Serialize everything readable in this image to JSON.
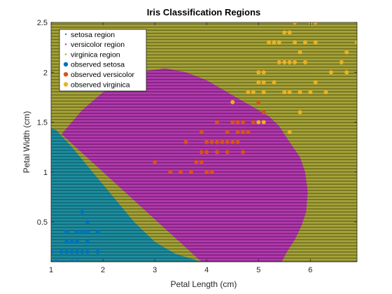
{
  "chart_data": {
    "type": "scatter",
    "title": "Iris  Classification  Regions",
    "xlabel": "Petal Length (cm)",
    "ylabel": "Petal Width (cm)",
    "xlim": [
      1,
      6.9
    ],
    "ylim": [
      0.1,
      2.5
    ],
    "xticks": [
      1,
      2,
      3,
      4,
      5,
      6
    ],
    "yticks": [
      0.5,
      1,
      1.5,
      2,
      2.5
    ],
    "xtick_labels": [
      "1",
      "2",
      "3",
      "4",
      "5",
      "6"
    ],
    "ytick_labels": [
      "0.5",
      "1",
      "1.5",
      "2",
      "2.5"
    ],
    "grid": false,
    "legend_position": "top-left",
    "regions": {
      "setosa_boundary": [
        [
          1.0,
          1.44
        ],
        [
          1.1,
          1.42
        ],
        [
          1.4,
          1.25
        ],
        [
          1.8,
          1.0
        ],
        [
          2.2,
          0.75
        ],
        [
          2.6,
          0.5
        ],
        [
          3.0,
          0.3
        ],
        [
          3.4,
          0.18
        ],
        [
          3.9,
          0.1
        ]
      ],
      "versicolor_boundary": [
        [
          1.2,
          1.38
        ],
        [
          1.6,
          1.62
        ],
        [
          2.0,
          1.8
        ],
        [
          2.4,
          1.92
        ],
        [
          2.8,
          2.01
        ],
        [
          3.2,
          2.04
        ],
        [
          3.6,
          2.0
        ],
        [
          4.0,
          1.92
        ],
        [
          4.4,
          1.8
        ],
        [
          4.8,
          1.68
        ],
        [
          5.2,
          1.56
        ],
        [
          5.4,
          1.46
        ],
        [
          5.6,
          1.3
        ],
        [
          5.8,
          1.15
        ],
        [
          5.9,
          1.0
        ],
        [
          5.95,
          0.8
        ],
        [
          5.92,
          0.6
        ],
        [
          5.82,
          0.45
        ],
        [
          5.7,
          0.32
        ],
        [
          5.55,
          0.2
        ],
        [
          5.45,
          0.1
        ],
        [
          3.9,
          0.1
        ]
      ]
    },
    "series": [
      {
        "name": "setosa region",
        "kind": "region",
        "color": "#1f8ea0",
        "stripe_color": "#0e6573"
      },
      {
        "name": "versicolor region",
        "kind": "region",
        "color": "#b23aae",
        "stripe_color": "#7d1f7a"
      },
      {
        "name": "virginica region",
        "kind": "region",
        "color": "#a6a43a",
        "stripe_color": "#6f6e1c"
      },
      {
        "name": "observed setosa",
        "kind": "points",
        "color": "#0072bd",
        "points": [
          [
            1.0,
            0.2
          ],
          [
            1.1,
            0.1
          ],
          [
            1.2,
            0.2
          ],
          [
            1.3,
            0.2
          ],
          [
            1.3,
            0.3
          ],
          [
            1.3,
            0.4
          ],
          [
            1.4,
            0.1
          ],
          [
            1.4,
            0.2
          ],
          [
            1.4,
            0.3
          ],
          [
            1.5,
            0.1
          ],
          [
            1.5,
            0.2
          ],
          [
            1.5,
            0.3
          ],
          [
            1.5,
            0.4
          ],
          [
            1.6,
            0.2
          ],
          [
            1.6,
            0.4
          ],
          [
            1.6,
            0.6
          ],
          [
            1.7,
            0.2
          ],
          [
            1.7,
            0.3
          ],
          [
            1.7,
            0.4
          ],
          [
            1.7,
            0.5
          ],
          [
            1.9,
            0.2
          ],
          [
            1.9,
            0.4
          ]
        ]
      },
      {
        "name": "observed versicolor",
        "kind": "points",
        "color": "#d95319",
        "points": [
          [
            3.0,
            1.1
          ],
          [
            3.3,
            1.0
          ],
          [
            3.5,
            1.0
          ],
          [
            3.6,
            1.3
          ],
          [
            3.7,
            1.0
          ],
          [
            3.8,
            1.1
          ],
          [
            3.9,
            1.1
          ],
          [
            3.9,
            1.2
          ],
          [
            3.9,
            1.4
          ],
          [
            4.0,
            1.0
          ],
          [
            4.0,
            1.2
          ],
          [
            4.0,
            1.3
          ],
          [
            4.1,
            1.0
          ],
          [
            4.1,
            1.3
          ],
          [
            4.2,
            1.2
          ],
          [
            4.2,
            1.3
          ],
          [
            4.2,
            1.5
          ],
          [
            4.3,
            1.3
          ],
          [
            4.4,
            1.2
          ],
          [
            4.4,
            1.3
          ],
          [
            4.4,
            1.4
          ],
          [
            4.5,
            1.3
          ],
          [
            4.5,
            1.5
          ],
          [
            4.6,
            1.3
          ],
          [
            4.6,
            1.4
          ],
          [
            4.6,
            1.5
          ],
          [
            4.7,
            1.2
          ],
          [
            4.7,
            1.4
          ],
          [
            4.7,
            1.5
          ],
          [
            4.8,
            1.4
          ],
          [
            4.8,
            1.8
          ],
          [
            4.9,
            1.5
          ],
          [
            5.0,
            1.7
          ],
          [
            5.1,
            1.6
          ]
        ]
      },
      {
        "name": "observed virginica",
        "kind": "points",
        "color": "#edb120",
        "points": [
          [
            4.5,
            1.7
          ],
          [
            4.8,
            1.8
          ],
          [
            4.9,
            1.8
          ],
          [
            5.0,
            1.5
          ],
          [
            5.0,
            1.9
          ],
          [
            5.0,
            2.0
          ],
          [
            5.1,
            1.5
          ],
          [
            5.1,
            1.8
          ],
          [
            5.1,
            1.9
          ],
          [
            5.1,
            2.0
          ],
          [
            5.2,
            2.3
          ],
          [
            5.3,
            1.9
          ],
          [
            5.3,
            2.3
          ],
          [
            5.4,
            2.1
          ],
          [
            5.4,
            2.3
          ],
          [
            5.5,
            1.8
          ],
          [
            5.5,
            2.1
          ],
          [
            5.5,
            2.4
          ],
          [
            5.6,
            1.4
          ],
          [
            5.6,
            1.8
          ],
          [
            5.6,
            2.1
          ],
          [
            5.6,
            2.4
          ],
          [
            5.7,
            2.1
          ],
          [
            5.7,
            2.3
          ],
          [
            5.7,
            2.5
          ],
          [
            5.8,
            1.6
          ],
          [
            5.8,
            1.8
          ],
          [
            5.8,
            2.2
          ],
          [
            5.9,
            2.1
          ],
          [
            5.9,
            2.3
          ],
          [
            6.0,
            1.8
          ],
          [
            6.0,
            2.5
          ],
          [
            6.1,
            1.9
          ],
          [
            6.1,
            2.3
          ],
          [
            6.1,
            2.5
          ],
          [
            6.3,
            1.8
          ],
          [
            6.4,
            2.0
          ],
          [
            6.6,
            2.1
          ],
          [
            6.7,
            2.0
          ],
          [
            6.7,
            2.2
          ],
          [
            6.9,
            2.3
          ]
        ]
      }
    ]
  }
}
